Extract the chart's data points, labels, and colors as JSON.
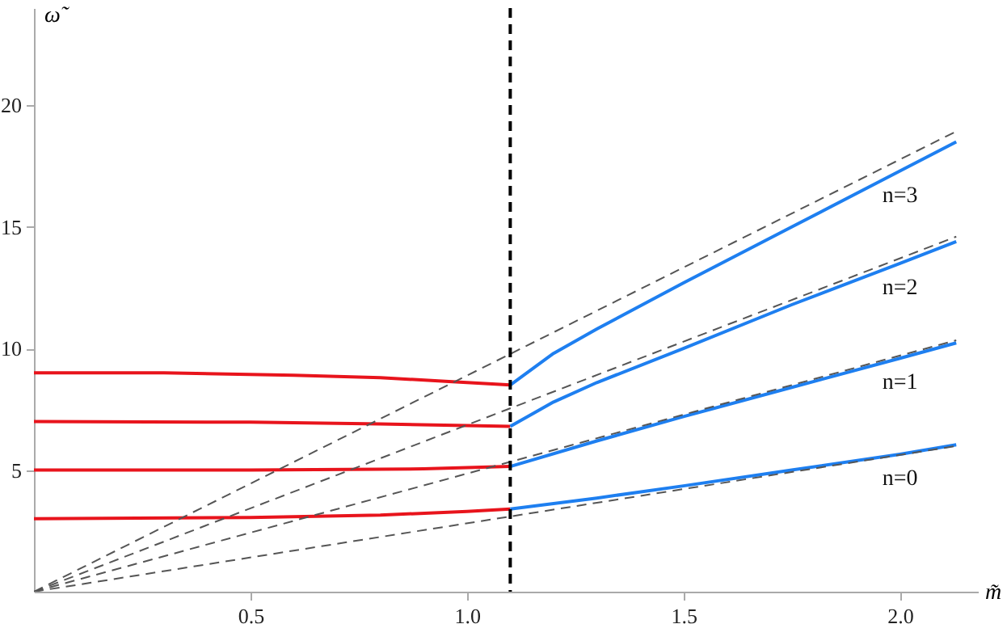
{
  "chart_data": {
    "type": "line",
    "xlabel": "m̃",
    "ylabel": "ω̃",
    "xlim": [
      0,
      2.18
    ],
    "ylim": [
      0,
      24
    ],
    "xticks": [
      0.5,
      {
        "value": 1,
        "label": "1.0"
      },
      1.5,
      {
        "value": 2,
        "label": "2.0"
      }
    ],
    "yticks": [
      5,
      10,
      15,
      20
    ],
    "grid": false,
    "series": [
      {
        "color": "#e8141c",
        "x": [
          0,
          0.3,
          0.6,
          0.8,
          0.95,
          1.1
        ],
        "values": [
          9.0,
          9.0,
          8.9,
          8.8,
          8.65,
          8.5
        ]
      },
      {
        "color": "#e8141c",
        "x": [
          0,
          0.5,
          0.8,
          1.0,
          1.1
        ],
        "values": [
          7.0,
          6.97,
          6.9,
          6.83,
          6.8
        ]
      },
      {
        "color": "#e8141c",
        "x": [
          0,
          0.5,
          0.9,
          1.1
        ],
        "values": [
          5.0,
          5.0,
          5.05,
          5.15
        ]
      },
      {
        "color": "#e8141c",
        "x": [
          0,
          0.5,
          0.8,
          1.0,
          1.1
        ],
        "values": [
          3.0,
          3.05,
          3.15,
          3.3,
          3.4
        ]
      },
      {
        "name": "n=3",
        "color": "#1e7ff0",
        "x": [
          1.1,
          1.2,
          1.3,
          1.5,
          1.75,
          2.0,
          2.13
        ],
        "values": [
          8.5,
          9.8,
          10.8,
          12.7,
          15.0,
          17.3,
          18.5
        ]
      },
      {
        "name": "n=2",
        "color": "#1e7ff0",
        "x": [
          1.1,
          1.2,
          1.3,
          1.5,
          1.75,
          2.0,
          2.13
        ],
        "values": [
          6.8,
          7.8,
          8.6,
          10.0,
          11.8,
          13.5,
          14.4
        ]
      },
      {
        "name": "n=1",
        "color": "#1e7ff0",
        "x": [
          1.1,
          1.3,
          1.5,
          1.75,
          2.0,
          2.13
        ],
        "values": [
          5.15,
          6.2,
          7.2,
          8.4,
          9.6,
          10.23
        ]
      },
      {
        "name": "n=0",
        "color": "#1e7ff0",
        "x": [
          1.1,
          1.3,
          1.5,
          1.75,
          2.0,
          2.13
        ],
        "values": [
          3.4,
          3.85,
          4.35,
          5.0,
          5.65,
          6.04
        ]
      },
      {
        "color": "#555555",
        "line_style": "dashed",
        "x": [
          0,
          2.13
        ],
        "values": [
          0,
          18.93
        ]
      },
      {
        "color": "#555555",
        "line_style": "dashed",
        "x": [
          0,
          2.13
        ],
        "values": [
          0,
          14.6
        ]
      },
      {
        "color": "#555555",
        "line_style": "dashed",
        "x": [
          0,
          2.13
        ],
        "values": [
          0,
          10.34
        ]
      },
      {
        "color": "#555555",
        "line_style": "dashed",
        "x": [
          0,
          2.13
        ],
        "values": [
          0,
          5.99
        ]
      }
    ],
    "ref_lines": [
      {
        "axis": "x",
        "value": 1.1,
        "color": "#000000",
        "line_style": "dashed"
      }
    ]
  }
}
